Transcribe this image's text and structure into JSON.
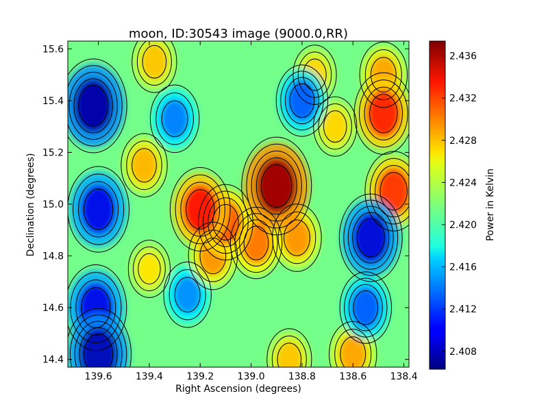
{
  "chart_data": {
    "type": "heatmap",
    "title": "moon, ID:30543 image (9000.0,RR)",
    "xlabel": "Right Ascension (degrees)",
    "ylabel": "Declination (degrees)",
    "colorbar_label": "Power in Kelvin",
    "colormap": "jet",
    "xlim": [
      139.72,
      138.38
    ],
    "ylim": [
      14.37,
      15.63
    ],
    "clim": [
      2.4063,
      2.4374
    ],
    "x_ticks": [
      139.6,
      139.4,
      139.2,
      139.0,
      138.8,
      138.6,
      138.4
    ],
    "x_tick_labels": [
      "139.6",
      "139.4",
      "139.2",
      "139.0",
      "138.8",
      "138.6",
      "138.4"
    ],
    "y_ticks": [
      14.4,
      14.6,
      14.8,
      15.0,
      15.2,
      15.4,
      15.6
    ],
    "y_tick_labels": [
      "14.4",
      "14.6",
      "14.8",
      "15.0",
      "15.2",
      "15.4",
      "15.6"
    ],
    "colorbar_ticks": [
      2.408,
      2.412,
      2.416,
      2.42,
      2.424,
      2.428,
      2.432,
      2.436
    ],
    "colorbar_tick_labels": [
      "2.408",
      "2.412",
      "2.416",
      "2.420",
      "2.424",
      "2.428",
      "2.432",
      "2.436"
    ],
    "contours": true,
    "features": [
      {
        "ra": 138.9,
        "dec": 15.07,
        "value": 2.4365
      },
      {
        "ra": 139.2,
        "dec": 14.98,
        "value": 2.433
      },
      {
        "ra": 139.1,
        "dec": 14.93,
        "value": 2.431
      },
      {
        "ra": 138.98,
        "dec": 14.85,
        "value": 2.43
      },
      {
        "ra": 139.15,
        "dec": 14.8,
        "value": 2.429
      },
      {
        "ra": 138.48,
        "dec": 15.35,
        "value": 2.4325
      },
      {
        "ra": 138.44,
        "dec": 15.05,
        "value": 2.432
      },
      {
        "ra": 138.48,
        "dec": 15.5,
        "value": 2.4285
      },
      {
        "ra": 138.75,
        "dec": 15.5,
        "value": 2.427
      },
      {
        "ra": 139.38,
        "dec": 15.55,
        "value": 2.4275
      },
      {
        "ra": 139.42,
        "dec": 15.15,
        "value": 2.428
      },
      {
        "ra": 138.82,
        "dec": 14.87,
        "value": 2.429
      },
      {
        "ra": 138.6,
        "dec": 14.42,
        "value": 2.4285
      },
      {
        "ra": 138.85,
        "dec": 14.4,
        "value": 2.4275
      },
      {
        "ra": 138.67,
        "dec": 15.3,
        "value": 2.427
      },
      {
        "ra": 139.4,
        "dec": 14.75,
        "value": 2.4265
      },
      {
        "ra": 139.62,
        "dec": 15.38,
        "value": 2.4075
      },
      {
        "ra": 139.6,
        "dec": 14.98,
        "value": 2.4095
      },
      {
        "ra": 139.61,
        "dec": 14.6,
        "value": 2.4095
      },
      {
        "ra": 139.6,
        "dec": 14.42,
        "value": 2.408
      },
      {
        "ra": 138.53,
        "dec": 14.87,
        "value": 2.409
      },
      {
        "ra": 138.55,
        "dec": 14.6,
        "value": 2.413
      },
      {
        "ra": 138.8,
        "dec": 15.4,
        "value": 2.413
      },
      {
        "ra": 139.3,
        "dec": 15.33,
        "value": 2.414
      },
      {
        "ra": 139.25,
        "dec": 14.65,
        "value": 2.4145
      }
    ]
  }
}
